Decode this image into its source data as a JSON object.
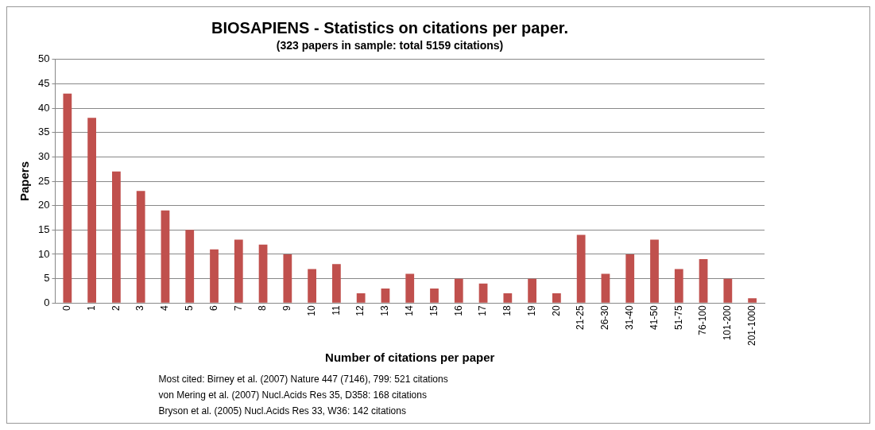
{
  "chart_data": {
    "type": "bar",
    "title": "BIOSAPIENS - Statistics on citations per paper.",
    "subtitle": "(323 papers in sample: total 5159 citations)",
    "xlabel": "Number of citations per paper",
    "ylabel": "Papers",
    "categories": [
      "0",
      "1",
      "2",
      "3",
      "4",
      "5",
      "6",
      "7",
      "8",
      "9",
      "10",
      "11",
      "12",
      "13",
      "14",
      "15",
      "16",
      "17",
      "18",
      "19",
      "20",
      "21-25",
      "26-30",
      "31-40",
      "41-50",
      "51-75",
      "76-100",
      "101-200",
      "201-1000"
    ],
    "values": [
      43,
      38,
      27,
      23,
      19,
      15,
      11,
      13,
      12,
      10,
      7,
      8,
      2,
      3,
      6,
      3,
      5,
      4,
      2,
      5,
      2,
      14,
      6,
      10,
      13,
      7,
      9,
      5,
      1
    ],
    "color": "#c0504d",
    "ylim": [
      0,
      50
    ],
    "yticks": [
      0,
      5,
      10,
      15,
      20,
      25,
      30,
      35,
      40,
      45,
      50
    ],
    "grid": "y",
    "legend": false,
    "annotations": [
      "Most cited: Birney et al. (2007) Nature 447 (7146), 799: 521 citations",
      "von Mering et al. (2007) Nucl.Acids Res 35, D358: 168 citations",
      "Bryson et al. (2005) Nucl.Acids Res 33, W36: 142 citations"
    ]
  }
}
